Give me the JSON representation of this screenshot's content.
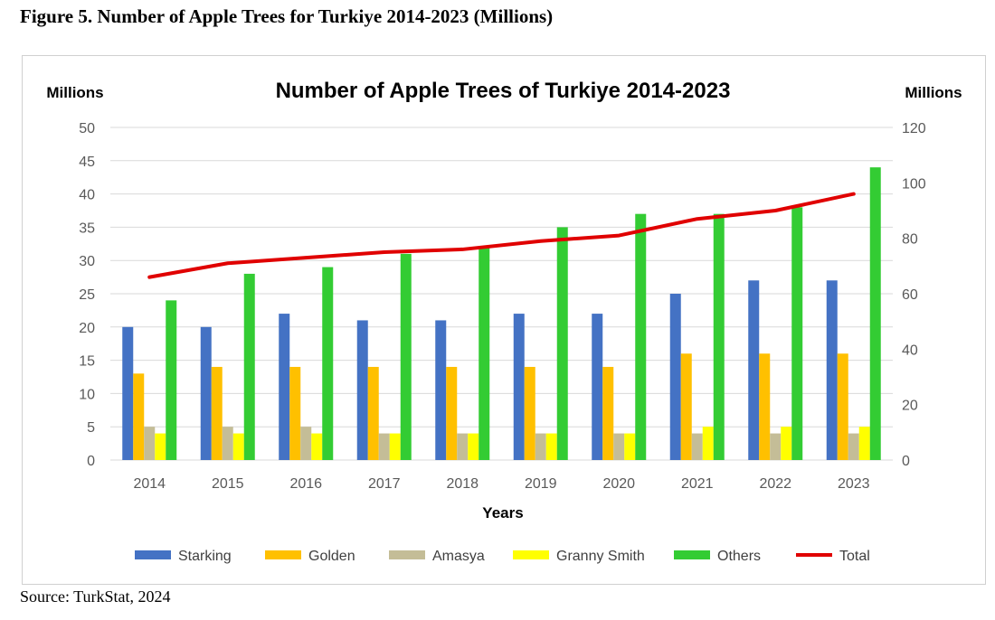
{
  "figure_title": "Figure 5. Number of Apple Trees for Turkiye 2014-2023 (Millions)",
  "source": "Source: TurkStat, 2024",
  "chart_data": {
    "type": "bar",
    "title": "Number of Apple Trees of Turkiye 2014-2023",
    "xlabel": "Years",
    "ylabel_left": "Millions",
    "ylabel_right": "Millions",
    "ylim_left": [
      0,
      50
    ],
    "ylim_right": [
      0,
      120
    ],
    "yticks_left": [
      0,
      5,
      10,
      15,
      20,
      25,
      30,
      35,
      40,
      45,
      50
    ],
    "yticks_right": [
      0,
      20,
      40,
      60,
      80,
      100,
      120
    ],
    "grid": true,
    "legend_position": "bottom",
    "categories": [
      "2014",
      "2015",
      "2016",
      "2017",
      "2018",
      "2019",
      "2020",
      "2021",
      "2022",
      "2023"
    ],
    "series": [
      {
        "name": "Starking",
        "type": "bar",
        "axis": "left",
        "color": "#4472C4",
        "values": [
          20,
          20,
          22,
          21,
          21,
          22,
          22,
          25,
          27,
          27
        ]
      },
      {
        "name": "Golden",
        "type": "bar",
        "axis": "left",
        "color": "#FFC000",
        "values": [
          13,
          14,
          14,
          14,
          14,
          14,
          14,
          16,
          16,
          16
        ]
      },
      {
        "name": "Amasya",
        "type": "bar",
        "axis": "left",
        "color": "#C4BD97",
        "values": [
          5,
          5,
          5,
          4,
          4,
          4,
          4,
          4,
          4,
          4
        ]
      },
      {
        "name": "Granny Smith",
        "type": "bar",
        "axis": "left",
        "color": "#FFFF00",
        "values": [
          4,
          4,
          4,
          4,
          4,
          4,
          4,
          5,
          5,
          5
        ]
      },
      {
        "name": "Others",
        "type": "bar",
        "axis": "left",
        "color": "#33CC33",
        "values": [
          24,
          28,
          29,
          31,
          32,
          35,
          37,
          37,
          38,
          44
        ]
      },
      {
        "name": "Total",
        "type": "line",
        "axis": "right",
        "color": "#E00000",
        "values": [
          66,
          71,
          73,
          75,
          76,
          79,
          81,
          87,
          90,
          96
        ]
      }
    ]
  }
}
